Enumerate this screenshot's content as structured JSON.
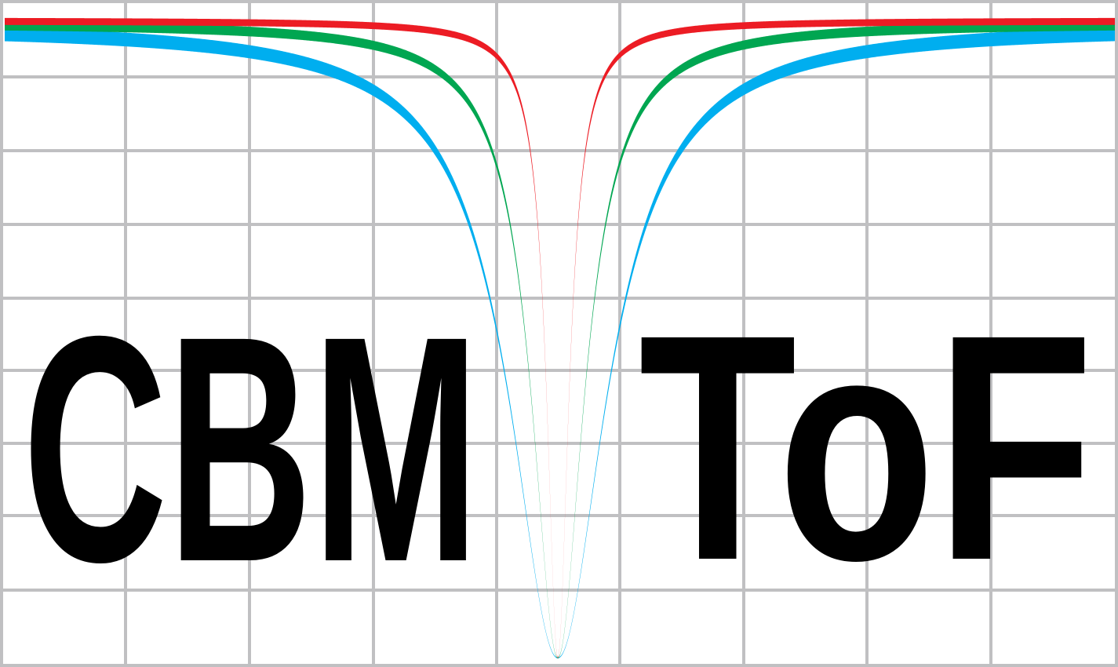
{
  "logo": {
    "left_word": "CBM",
    "right_word": "ToF",
    "colors": {
      "grid": "#c0c0c2",
      "background": "#ffffff",
      "text": "#000000",
      "curve_red": "#ec1c24",
      "curve_green": "#00a651",
      "curve_blue": "#00aeef"
    },
    "curves": [
      {
        "color_key": "curve_blue"
      },
      {
        "color_key": "curve_green"
      },
      {
        "color_key": "curve_red"
      }
    ]
  }
}
